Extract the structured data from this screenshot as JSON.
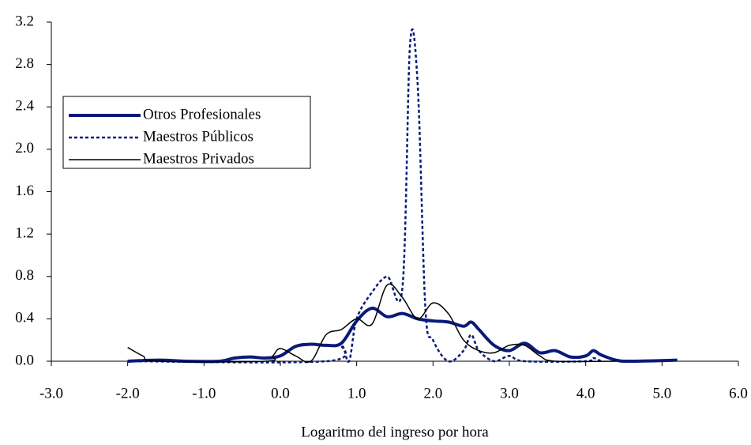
{
  "chart_data": {
    "type": "line",
    "x_label": "Logaritmo del ingreso por hora",
    "xlim": [
      -3,
      6
    ],
    "xticks": [
      {
        "value": -3,
        "label": "-3.0"
      },
      {
        "value": -2,
        "label": "-2.0"
      },
      {
        "value": -1,
        "label": "-1.0"
      },
      {
        "value": 0,
        "label": "0.0"
      },
      {
        "value": 1,
        "label": "1.0"
      },
      {
        "value": 2,
        "label": "2.0"
      },
      {
        "value": 3,
        "label": "3.0"
      },
      {
        "value": 4,
        "label": "4.0"
      },
      {
        "value": 5,
        "label": "5.0"
      },
      {
        "value": 6,
        "label": "6.0"
      }
    ],
    "ylim": [
      0,
      3.2
    ],
    "yticks": [
      {
        "value": 0,
        "label": "0.0"
      },
      0.4,
      0.8,
      1.2,
      1.6,
      {
        "value": 2,
        "label": "2.0"
      },
      2.4,
      2.8,
      3.2
    ],
    "grid": false,
    "series": [
      {
        "name": "Otros Profesionales",
        "color": "#0a1a7a",
        "dash": "solid",
        "width": 4,
        "x": [
          -2.0,
          -1.6,
          -1.2,
          -0.8,
          -0.6,
          -0.4,
          -0.2,
          0.0,
          0.2,
          0.4,
          0.6,
          0.8,
          1.0,
          1.2,
          1.4,
          1.6,
          1.8,
          2.0,
          2.2,
          2.4,
          2.5,
          2.6,
          2.8,
          3.0,
          3.2,
          3.4,
          3.6,
          3.8,
          4.0,
          4.1,
          4.2,
          4.4,
          4.6,
          5.2
        ],
        "values": [
          0,
          0.01,
          0,
          0,
          0.03,
          0.04,
          0.03,
          0.05,
          0.14,
          0.16,
          0.15,
          0.17,
          0.38,
          0.5,
          0.42,
          0.45,
          0.4,
          0.38,
          0.37,
          0.33,
          0.37,
          0.3,
          0.15,
          0.1,
          0.17,
          0.08,
          0.1,
          0.04,
          0.05,
          0.1,
          0.06,
          0.01,
          0,
          0.01
        ]
      },
      {
        "name": "Maestros Públicos",
        "color": "#0a1a7a",
        "dash": "dotted",
        "width": 2.5,
        "x": [
          -2.0,
          0.6,
          0.8,
          0.9,
          1.0,
          1.2,
          1.4,
          1.6,
          1.7,
          1.8,
          1.9,
          2.0,
          2.2,
          2.4,
          2.5,
          2.6,
          2.8,
          3.0,
          3.2,
          4.0,
          4.1,
          4.2
        ],
        "values": [
          0,
          0,
          0.15,
          0,
          0.4,
          0.65,
          0.8,
          0.7,
          3.0,
          2.6,
          0.5,
          0.2,
          0,
          0.1,
          0.25,
          0.1,
          0,
          0.05,
          0,
          0,
          0.03,
          0
        ]
      },
      {
        "name": "Maestros Privados",
        "color": "#000000",
        "dash": "solid",
        "width": 1.5,
        "x": [
          -2.0,
          -1.8,
          -1.6,
          -0.2,
          -0.1,
          0.0,
          0.2,
          0.4,
          0.6,
          0.8,
          1.0,
          1.2,
          1.4,
          1.6,
          1.8,
          2.0,
          2.2,
          2.4,
          2.6,
          2.8,
          3.0,
          3.2,
          3.4,
          3.6,
          4.4
        ],
        "values": [
          0.13,
          0.05,
          0,
          0,
          0.05,
          0.12,
          0.05,
          0,
          0.25,
          0.3,
          0.4,
          0.35,
          0.72,
          0.6,
          0.4,
          0.55,
          0.45,
          0.2,
          0.1,
          0.08,
          0.15,
          0.15,
          0.05,
          0,
          0
        ]
      }
    ]
  }
}
